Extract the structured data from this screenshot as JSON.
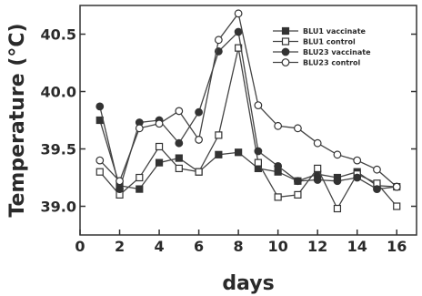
{
  "chart_data": {
    "type": "line",
    "title": "",
    "xlabel": "days",
    "ylabel": "Temperature (°C)",
    "xlim": [
      0,
      17
    ],
    "ylim": [
      38.75,
      40.75
    ],
    "x_ticks": [
      0,
      2,
      4,
      6,
      8,
      10,
      12,
      14,
      16
    ],
    "y_ticks": [
      39.0,
      39.5,
      40.0,
      40.5
    ],
    "grid": false,
    "legend_position": "top-right",
    "series": [
      {
        "name": "BLU1 vaccinate",
        "marker": "square-filled",
        "x": [
          1,
          2,
          3,
          4,
          5,
          6,
          7,
          8,
          9,
          10,
          11,
          12,
          13,
          14,
          15,
          16
        ],
        "y": [
          39.75,
          39.18,
          39.15,
          39.38,
          39.42,
          39.3,
          39.45,
          39.47,
          39.33,
          39.3,
          39.22,
          39.28,
          39.25,
          39.3,
          39.18,
          39.17
        ]
      },
      {
        "name": "BLU1 control",
        "marker": "square-open",
        "x": [
          1,
          2,
          3,
          4,
          5,
          6,
          7,
          8,
          9,
          10,
          11,
          12,
          13,
          14,
          15,
          16
        ],
        "y": [
          39.3,
          39.1,
          39.25,
          39.52,
          39.33,
          39.3,
          39.62,
          40.38,
          39.38,
          39.08,
          39.1,
          39.33,
          38.98,
          39.28,
          39.2,
          39.0
        ]
      },
      {
        "name": "BLU23 vaccinate",
        "marker": "circle-filled",
        "x": [
          1,
          2,
          3,
          4,
          5,
          6,
          7,
          8,
          9,
          10,
          11,
          12,
          13,
          14,
          15,
          16
        ],
        "y": [
          39.87,
          39.15,
          39.73,
          39.75,
          39.55,
          39.82,
          40.35,
          40.52,
          39.48,
          39.35,
          39.22,
          39.23,
          39.22,
          39.25,
          39.15,
          39.17
        ]
      },
      {
        "name": "BLU23 control",
        "marker": "circle-open",
        "x": [
          1,
          2,
          3,
          4,
          5,
          6,
          7,
          8,
          9,
          10,
          11,
          12,
          13,
          14,
          15,
          16
        ],
        "y": [
          39.4,
          39.22,
          39.68,
          39.72,
          39.83,
          39.58,
          40.45,
          40.68,
          39.88,
          39.7,
          39.68,
          39.55,
          39.45,
          39.4,
          39.32,
          39.17
        ]
      }
    ]
  }
}
